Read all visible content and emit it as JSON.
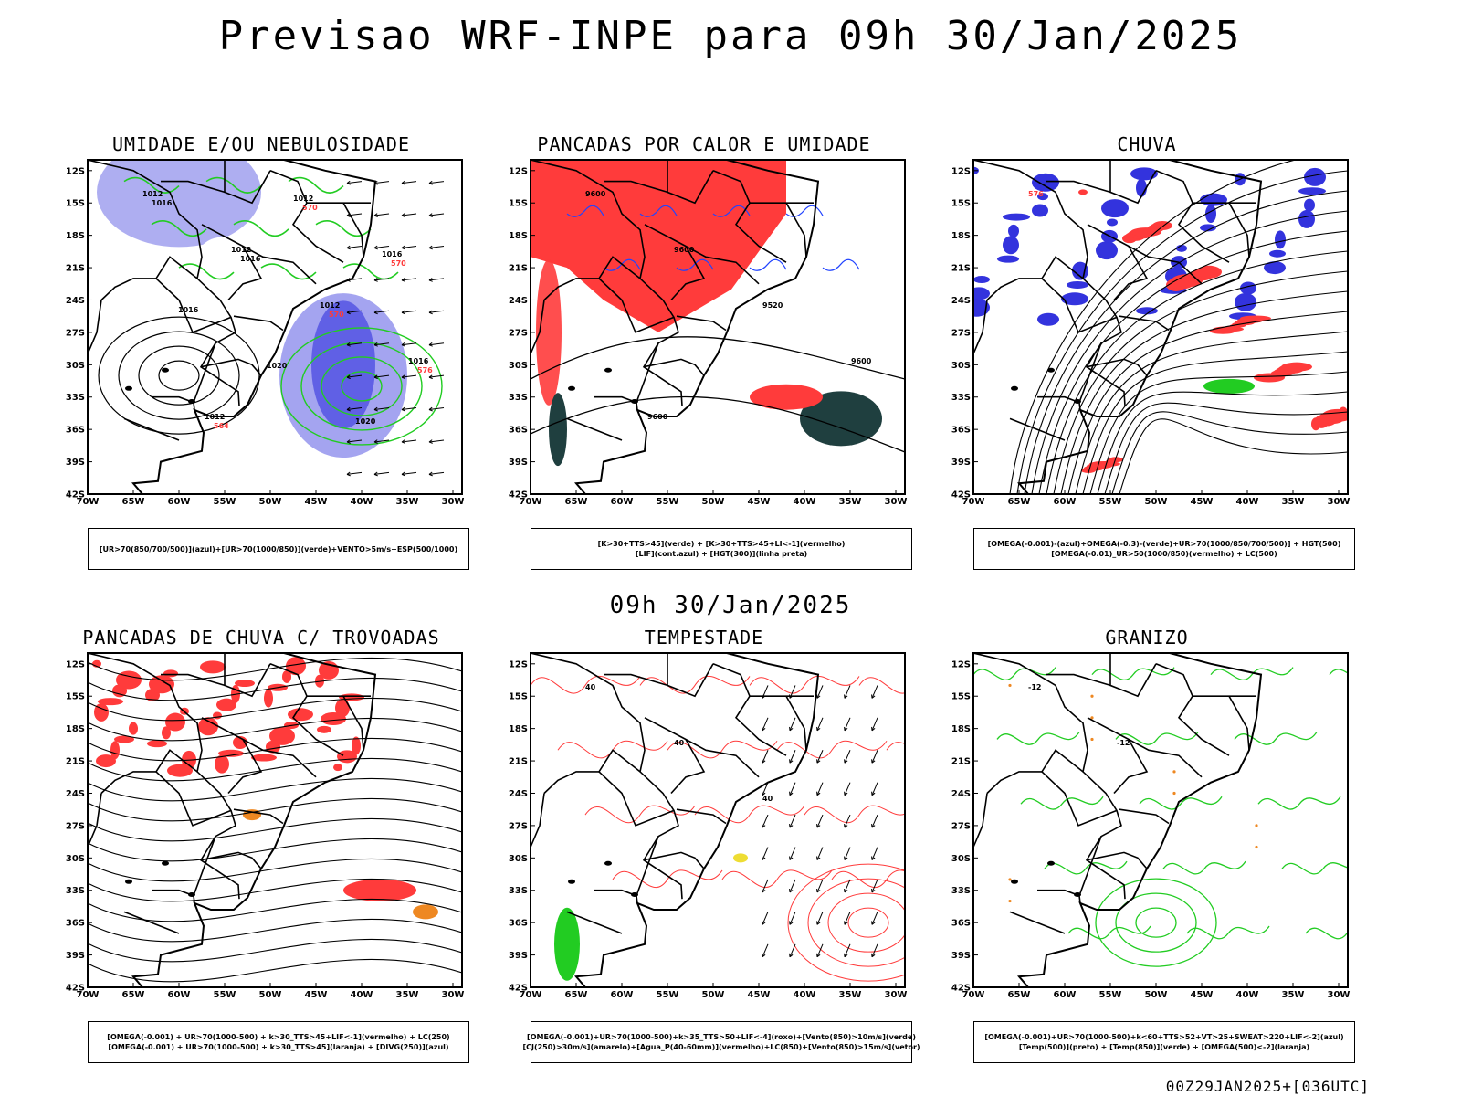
{
  "title": "Previsao WRF-INPE  para 09h 30/Jan/2025",
  "mid_time": "09h 30/Jan/2025",
  "footer": "00Z29JAN2025+[036UTC]",
  "axes": {
    "lat_labels": [
      "12S",
      "15S",
      "18S",
      "21S",
      "24S",
      "27S",
      "30S",
      "33S",
      "36S",
      "39S",
      "42S"
    ],
    "lon_labels": [
      "70W",
      "65W",
      "60W",
      "55W",
      "50W",
      "45W",
      "40W",
      "35W",
      "30W"
    ]
  },
  "panels": [
    {
      "title": "UMIDADE E/OU NEBULOSIDADE",
      "legend": [
        "[UR>70(850/700/500)](azul)+[UR>70(1000/850)](verde)+VENTO>5m/s+ESP(500/1000)"
      ],
      "contour_labels": [
        "1012",
        "1012",
        "1012",
        "1016",
        "1012",
        "1012",
        "1016",
        "1016",
        "1020",
        "1020",
        "1016",
        "1016",
        "570",
        "576",
        "564",
        "570",
        "570"
      ]
    },
    {
      "title": "PANCADAS POR CALOR E UMIDADE",
      "legend": [
        "[K>30+TTS>45](verde) + [K>30+TTS>45+LI<-1](vermelho)",
        "[LIF](cont.azul) + [HGT(300)](linha preta)"
      ],
      "contour_labels": [
        "9600",
        "9600",
        "9520",
        "9600",
        "9600"
      ]
    },
    {
      "title": "CHUVA",
      "legend": [
        "[OMEGA(-0.001)-(azul)+OMEGA(-0.3)-(verde)+UR>70(1000/850/700/500)] + HGT(500)",
        "[OMEGA(-0.01)_UR>50(1000/850)(vermelho) + LC(500)"
      ],
      "contour_labels": [
        "576"
      ]
    },
    {
      "title": "PANCADAS DE CHUVA C/ TROVOADAS",
      "legend": [
        "[OMEGA(-0.001) + UR>70(1000-500) + k>30_TTS>45+LIF<-1](vermelho) + LC(250)",
        "[OMEGA(-0.001) + UR>70(1000-500) + k>30_TTS>45](laranja) + [DIVG(250)](azul)"
      ],
      "contour_labels": []
    },
    {
      "title": "TEMPESTADE",
      "legend": [
        "[OMEGA(-0.001)+UR>70(1000-500)+k>35_TTS>50+LIF<-4](roxo)+[Vento(850)>10m/s](verde)",
        "[CJ(250)>30m/s](amarelo)+[Agua_P(40-60mm)](vermelho)+LC(850)+[Vento(850)>15m/s](vetor)"
      ],
      "contour_labels": [
        "40",
        "40",
        "40"
      ]
    },
    {
      "title": "GRANIZO",
      "legend": [
        "[OMEGA(-0.001)+UR>70(1000-500)+k<60+TTS>52+VT>25+SWEAT>220+LIF<-2](azul)",
        "[Temp(500)](preto) + [Temp(850)](verde) + [OMEGA(500)<-2](laranja)"
      ],
      "contour_labels": [
        "-12",
        "-12"
      ]
    }
  ],
  "colors": {
    "coast": "#000000",
    "blue_fill": "#9a9aee",
    "blue_dark": "#3333dd",
    "green": "#22cc22",
    "red": "#ff3b3b",
    "dark_teal": "#1f3f3f",
    "orange": "#ee8822"
  }
}
